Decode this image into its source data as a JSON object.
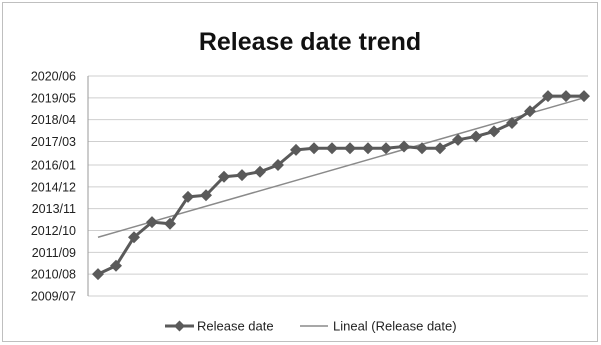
{
  "chart_data": {
    "type": "line",
    "title": "Release date trend",
    "xlabel": "",
    "ylabel": "",
    "y_ticks": [
      "2009/07",
      "2010/08",
      "2011/09",
      "2012/10",
      "2013/11",
      "2014/12",
      "2016/01",
      "2017/03",
      "2018/04",
      "2019/05",
      "2020/06"
    ],
    "ylim": [
      "2009/07",
      "2020/06"
    ],
    "grid": true,
    "legend_position": "bottom",
    "series": [
      {
        "name": "Release date",
        "marker": "diamond",
        "color": "#5a5a5a",
        "values": [
          "2010/08",
          "2011/01",
          "2012/06",
          "2013/03",
          "2013/02",
          "2014/06",
          "2014/07",
          "2015/06",
          "2015/07",
          "2015/09",
          "2016/01",
          "2016/10",
          "2016/11",
          "2016/11",
          "2016/11",
          "2016/11",
          "2016/11",
          "2016/12",
          "2016/11",
          "2016/11",
          "2017/04",
          "2017/06",
          "2017/09",
          "2018/02",
          "2018/09",
          "2019/06",
          "2019/06",
          "2019/06"
        ]
      },
      {
        "name": "Lineal (Release date)",
        "type": "trendline",
        "color": "#8a8a8a",
        "values": [
          "2012/06",
          "2019/05"
        ]
      }
    ]
  }
}
